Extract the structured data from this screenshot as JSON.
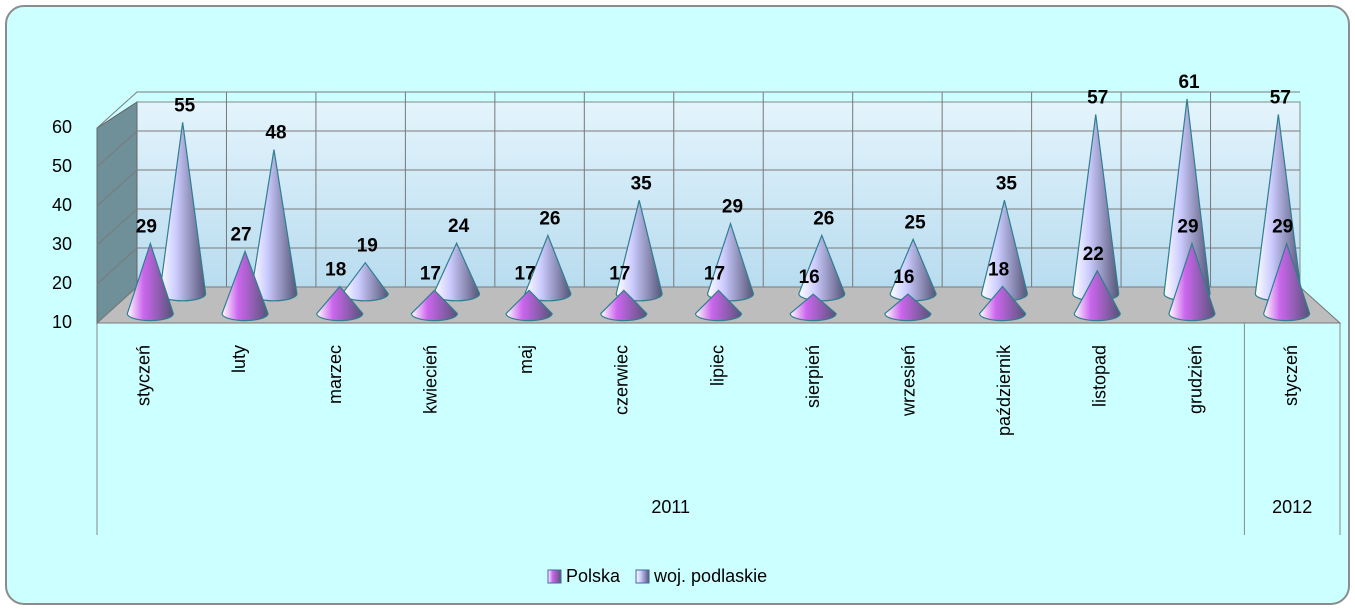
{
  "chart_data": {
    "type": "cone3d",
    "category_groups": [
      {
        "label": "2011",
        "categories": [
          "styczeń",
          "luty",
          "marzec",
          "kwiecień",
          "maj",
          "czerwiec",
          "lipiec",
          "sierpień",
          "wrzesień",
          "październik",
          "listopad",
          "grudzień"
        ]
      },
      {
        "label": "2012",
        "categories": [
          "styczeń"
        ]
      }
    ],
    "series": [
      {
        "name": "Polska",
        "color": "#cc66ee",
        "values": [
          29,
          27,
          18,
          17,
          17,
          17,
          17,
          16,
          16,
          18,
          22,
          29,
          29
        ]
      },
      {
        "name": "woj. podlaskie",
        "color": "#ccccff",
        "values": [
          55,
          48,
          19,
          24,
          26,
          35,
          29,
          26,
          25,
          35,
          57,
          61,
          57
        ]
      }
    ],
    "ylim": [
      10,
      60
    ],
    "yticks": [
      10,
      20,
      30,
      40,
      50,
      60
    ],
    "grid": true,
    "legend": "bottom"
  }
}
